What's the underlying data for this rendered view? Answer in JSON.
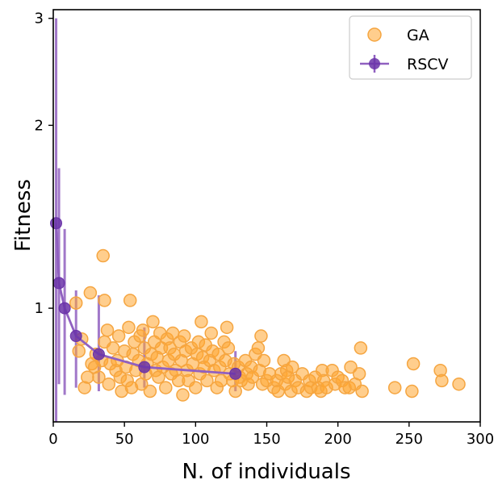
{
  "colors": {
    "ga": "#ffa530",
    "ga_edge": "#f5a540",
    "rscv": "#6a32a8",
    "rscv_bar": "#9060c0",
    "axes": "#000000"
  },
  "chart_data": {
    "type": "scatter",
    "title": "",
    "xlabel": "N. of individuals",
    "ylabel": "Fitness",
    "xlim": [
      0,
      300
    ],
    "ylim": [
      0.65,
      3.1
    ],
    "y_scale": "log",
    "x_ticks": [
      0,
      50,
      100,
      150,
      200,
      250,
      300
    ],
    "y_ticks": [
      1,
      2,
      3
    ],
    "grid": false,
    "legend": {
      "placement": "top-right"
    },
    "series": [
      {
        "name": "GA",
        "kind": "scatter",
        "points": [
          [
            16,
            1.02
          ],
          [
            18,
            0.85
          ],
          [
            20,
            0.89
          ],
          [
            22,
            0.74
          ],
          [
            24,
            0.77
          ],
          [
            26,
            1.06
          ],
          [
            27,
            0.81
          ],
          [
            29,
            0.8
          ],
          [
            30,
            0.84
          ],
          [
            32,
            0.77
          ],
          [
            34,
            0.82
          ],
          [
            35,
            1.22
          ],
          [
            36,
            0.88
          ],
          [
            36,
            1.03
          ],
          [
            38,
            0.92
          ],
          [
            39,
            0.75
          ],
          [
            40,
            0.81
          ],
          [
            42,
            0.86
          ],
          [
            44,
            0.79
          ],
          [
            45,
            0.82
          ],
          [
            46,
            0.9
          ],
          [
            47,
            0.77
          ],
          [
            48,
            0.73
          ],
          [
            50,
            0.85
          ],
          [
            51,
            0.8
          ],
          [
            52,
            0.76
          ],
          [
            53,
            0.93
          ],
          [
            54,
            1.03
          ],
          [
            55,
            0.74
          ],
          [
            56,
            0.84
          ],
          [
            57,
            0.88
          ],
          [
            58,
            0.79
          ],
          [
            60,
            0.82
          ],
          [
            61,
            0.9
          ],
          [
            62,
            0.75
          ],
          [
            63,
            0.92
          ],
          [
            64,
            0.86
          ],
          [
            65,
            0.78
          ],
          [
            66,
            0.81
          ],
          [
            68,
            0.73
          ],
          [
            69,
            0.84
          ],
          [
            70,
            0.95
          ],
          [
            71,
            0.88
          ],
          [
            72,
            0.79
          ],
          [
            73,
            0.83
          ],
          [
            74,
            0.77
          ],
          [
            75,
            0.91
          ],
          [
            76,
            0.86
          ],
          [
            77,
            0.8
          ],
          [
            79,
            0.74
          ],
          [
            80,
            0.89
          ],
          [
            81,
            0.82
          ],
          [
            82,
            0.86
          ],
          [
            83,
            0.78
          ],
          [
            84,
            0.91
          ],
          [
            85,
            0.84
          ],
          [
            86,
            0.79
          ],
          [
            88,
            0.76
          ],
          [
            89,
            0.88
          ],
          [
            90,
            0.82
          ],
          [
            91,
            0.72
          ],
          [
            92,
            0.9
          ],
          [
            93,
            0.85
          ],
          [
            94,
            0.79
          ],
          [
            95,
            0.76
          ],
          [
            97,
            0.86
          ],
          [
            98,
            0.81
          ],
          [
            100,
            0.74
          ],
          [
            101,
            0.84
          ],
          [
            102,
            0.88
          ],
          [
            103,
            0.78
          ],
          [
            104,
            0.95
          ],
          [
            105,
            0.83
          ],
          [
            106,
            0.8
          ],
          [
            107,
            0.87
          ],
          [
            108,
            0.76
          ],
          [
            110,
            0.82
          ],
          [
            111,
            0.91
          ],
          [
            112,
            0.85
          ],
          [
            113,
            0.79
          ],
          [
            115,
            0.74
          ],
          [
            116,
            0.84
          ],
          [
            117,
            0.8
          ],
          [
            118,
            0.76
          ],
          [
            120,
            0.88
          ],
          [
            121,
            0.82
          ],
          [
            122,
            0.93
          ],
          [
            123,
            0.86
          ],
          [
            124,
            0.78
          ],
          [
            126,
            0.76
          ],
          [
            127,
            0.81
          ],
          [
            128,
            0.73
          ],
          [
            130,
            0.8
          ],
          [
            131,
            0.77
          ],
          [
            132,
            0.76
          ],
          [
            135,
            0.82
          ],
          [
            136,
            0.78
          ],
          [
            137,
            0.75
          ],
          [
            139,
            0.8
          ],
          [
            140,
            0.77
          ],
          [
            142,
            0.84
          ],
          [
            144,
            0.86
          ],
          [
            145,
            0.79
          ],
          [
            146,
            0.9
          ],
          [
            147,
            0.75
          ],
          [
            148,
            0.82
          ],
          [
            150,
            0.76
          ],
          [
            152,
            0.78
          ],
          [
            155,
            0.74
          ],
          [
            157,
            0.76
          ],
          [
            158,
            0.73
          ],
          [
            160,
            0.78
          ],
          [
            162,
            0.82
          ],
          [
            163,
            0.75
          ],
          [
            164,
            0.79
          ],
          [
            165,
            0.77
          ],
          [
            167,
            0.73
          ],
          [
            168,
            0.8
          ],
          [
            170,
            0.76
          ],
          [
            172,
            0.74
          ],
          [
            175,
            0.78
          ],
          [
            178,
            0.73
          ],
          [
            180,
            0.76
          ],
          [
            181,
            0.74
          ],
          [
            184,
            0.77
          ],
          [
            186,
            0.74
          ],
          [
            188,
            0.73
          ],
          [
            189,
            0.79
          ],
          [
            190,
            0.76
          ],
          [
            192,
            0.74
          ],
          [
            196,
            0.79
          ],
          [
            198,
            0.75
          ],
          [
            200,
            0.77
          ],
          [
            203,
            0.76
          ],
          [
            205,
            0.74
          ],
          [
            208,
            0.74
          ],
          [
            209,
            0.8
          ],
          [
            212,
            0.75
          ],
          [
            215,
            0.78
          ],
          [
            216,
            0.86
          ],
          [
            217,
            0.73
          ],
          [
            240,
            0.74
          ],
          [
            252,
            0.73
          ],
          [
            253,
            0.81
          ],
          [
            272,
            0.79
          ],
          [
            273,
            0.76
          ],
          [
            285,
            0.75
          ]
        ]
      },
      {
        "name": "RSCV",
        "kind": "line_errorbar",
        "points": [
          {
            "x": 2,
            "y": 1.38,
            "ymin": 0.65,
            "ymax": 3.0
          },
          {
            "x": 4,
            "y": 1.1,
            "ymin": 0.75,
            "ymax": 1.7
          },
          {
            "x": 8,
            "y": 1.0,
            "ymin": 0.72,
            "ymax": 1.35
          },
          {
            "x": 16,
            "y": 0.9,
            "ymin": 0.74,
            "ymax": 1.07
          },
          {
            "x": 32,
            "y": 0.84,
            "ymin": 0.73,
            "ymax": 1.05
          },
          {
            "x": 64,
            "y": 0.8,
            "ymin": 0.74,
            "ymax": 0.93
          },
          {
            "x": 128,
            "y": 0.78,
            "ymin": 0.73,
            "ymax": 0.85
          }
        ]
      }
    ]
  }
}
